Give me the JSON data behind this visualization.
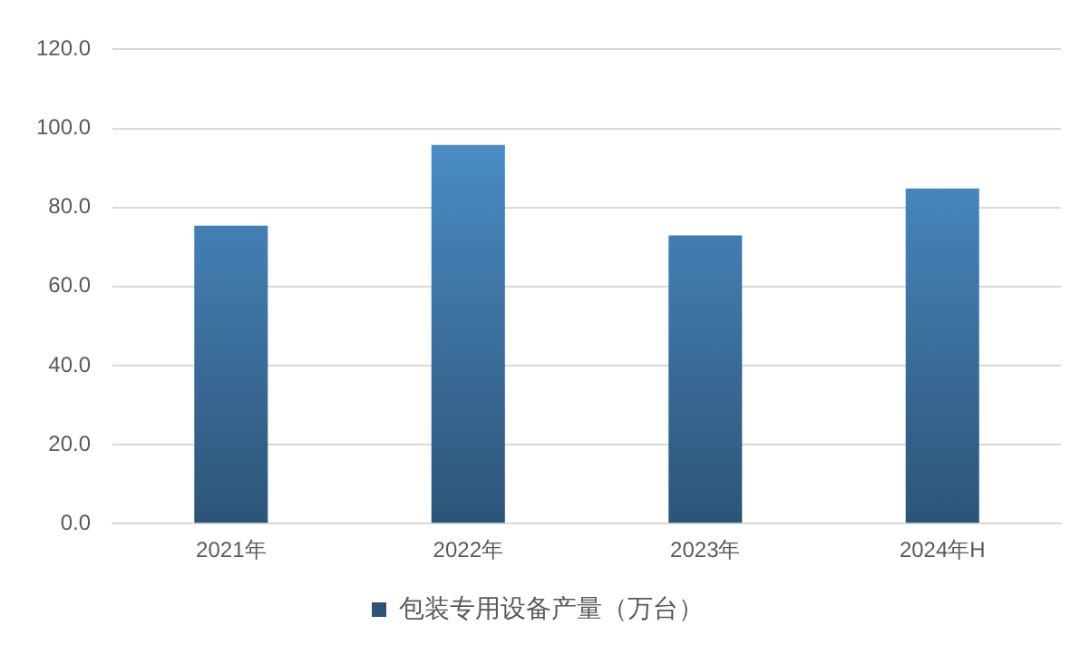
{
  "chart_data": {
    "type": "bar",
    "categories": [
      "2021年",
      "2022年",
      "2023年",
      "2024年H"
    ],
    "series": [
      {
        "name": "包装专用设备产量（万台）",
        "color": "#5199d8",
        "values": [
          75.4,
          95.8,
          72.9,
          84.8
        ]
      }
    ],
    "ylim": [
      0,
      120
    ],
    "yticks": [
      {
        "value": 0,
        "label": "0.0"
      },
      {
        "value": 20,
        "label": "20.0"
      },
      {
        "value": 40,
        "label": "40.0"
      },
      {
        "value": 60,
        "label": "60.0"
      },
      {
        "value": 80,
        "label": "80.0"
      },
      {
        "value": 100,
        "label": "100.0"
      },
      {
        "value": 120,
        "label": "120.0"
      }
    ],
    "grid": "y",
    "legend": "bottom"
  }
}
